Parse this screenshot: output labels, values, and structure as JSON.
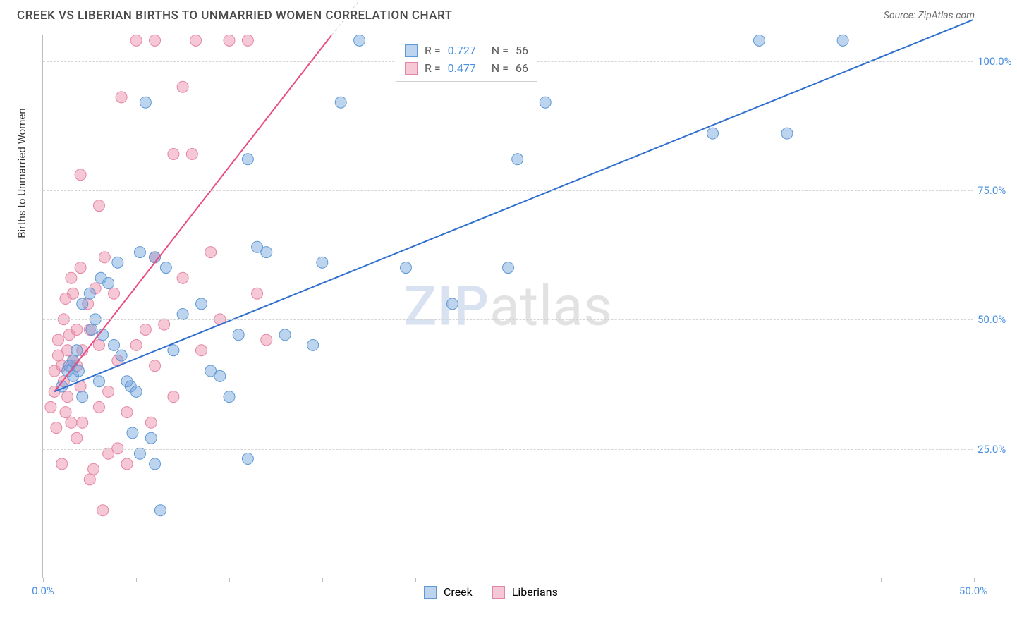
{
  "title": "CREEK VS LIBERIAN BIRTHS TO UNMARRIED WOMEN CORRELATION CHART",
  "source": "Source: ZipAtlas.com",
  "y_axis_label": "Births to Unmarried Women",
  "watermark_a": "ZIP",
  "watermark_b": "atlas",
  "chart": {
    "type": "scatter",
    "xlim": [
      0,
      50
    ],
    "ylim": [
      0,
      105
    ],
    "x_ticks": [
      0,
      5,
      10,
      15,
      20,
      25,
      30,
      35,
      40,
      45,
      50
    ],
    "y_gridlines": [
      25,
      50,
      75,
      100
    ],
    "y_tick_labels": [
      "25.0%",
      "50.0%",
      "75.0%",
      "100.0%"
    ],
    "x_left_label": "0.0%",
    "x_right_label": "50.0%",
    "x_label_color_left": "#4a90e2",
    "x_label_color_right": "#4a90e2",
    "grid_color": "#d4d4d4",
    "axis_color": "#bdbdbd",
    "background": "#ffffff"
  },
  "series": {
    "creek": {
      "label": "Creek",
      "color_fill": "rgba(108,160,220,0.45)",
      "color_stroke": "#5f98d4",
      "line_color": "#2f6fd0",
      "line_width": 2,
      "trend": {
        "x1": 0.6,
        "y1": 36,
        "x2": 50,
        "y2": 108
      },
      "points": [
        [
          1.0,
          37
        ],
        [
          1.3,
          40
        ],
        [
          1.4,
          41
        ],
        [
          1.6,
          42
        ],
        [
          1.6,
          39
        ],
        [
          1.9,
          40
        ],
        [
          2.1,
          35
        ],
        [
          2.1,
          53
        ],
        [
          2.6,
          48
        ],
        [
          2.8,
          50
        ],
        [
          3.1,
          58
        ],
        [
          3.5,
          57
        ],
        [
          3.2,
          47
        ],
        [
          3.8,
          45
        ],
        [
          4.2,
          43
        ],
        [
          4.5,
          38
        ],
        [
          4.7,
          37
        ],
        [
          5.0,
          36
        ],
        [
          5.2,
          24
        ],
        [
          5.8,
          27
        ],
        [
          6.0,
          22
        ],
        [
          6.3,
          13
        ],
        [
          7.0,
          44
        ],
        [
          4.0,
          61
        ],
        [
          5.2,
          63
        ],
        [
          6.0,
          62
        ],
        [
          6.6,
          60
        ],
        [
          7.5,
          51
        ],
        [
          8.5,
          53
        ],
        [
          9.0,
          40
        ],
        [
          9.5,
          39
        ],
        [
          10.0,
          35
        ],
        [
          10.5,
          47
        ],
        [
          11.0,
          23
        ],
        [
          11.0,
          81
        ],
        [
          11.5,
          64
        ],
        [
          12.0,
          63
        ],
        [
          13.0,
          47
        ],
        [
          14.5,
          45
        ],
        [
          15.0,
          61
        ],
        [
          17.0,
          104
        ],
        [
          19.5,
          60
        ],
        [
          22.0,
          53
        ],
        [
          25.5,
          81
        ],
        [
          27.0,
          92
        ],
        [
          25.0,
          60
        ],
        [
          16.0,
          92
        ],
        [
          5.5,
          92
        ],
        [
          36.0,
          86
        ],
        [
          38.5,
          104
        ],
        [
          40.0,
          86
        ],
        [
          43.0,
          104
        ],
        [
          2.5,
          55
        ],
        [
          1.8,
          44
        ],
        [
          3.0,
          38
        ],
        [
          4.8,
          28
        ]
      ]
    },
    "liberians": {
      "label": "Liberians",
      "color_fill": "rgba(235,130,160,0.45)",
      "color_stroke": "#e386a6",
      "line_color": "#e94b82",
      "line_width": 2,
      "trend": {
        "x1": 0.6,
        "y1": 36,
        "x2": 15.5,
        "y2": 105
      },
      "dash_ext": {
        "x1": 15.5,
        "y1": 105,
        "x2": 17.5,
        "y2": 114
      },
      "points": [
        [
          0.4,
          33
        ],
        [
          0.6,
          36
        ],
        [
          0.6,
          40
        ],
        [
          0.7,
          29
        ],
        [
          0.8,
          43
        ],
        [
          0.8,
          46
        ],
        [
          1.0,
          41
        ],
        [
          1.1,
          50
        ],
        [
          1.1,
          38
        ],
        [
          1.2,
          54
        ],
        [
          1.2,
          32
        ],
        [
          1.3,
          35
        ],
        [
          1.3,
          44
        ],
        [
          1.4,
          47
        ],
        [
          1.5,
          58
        ],
        [
          1.6,
          42
        ],
        [
          1.6,
          55
        ],
        [
          1.8,
          27
        ],
        [
          1.8,
          48
        ],
        [
          1.8,
          41
        ],
        [
          2.0,
          60
        ],
        [
          2.0,
          37
        ],
        [
          2.1,
          30
        ],
        [
          2.1,
          44
        ],
        [
          2.0,
          78
        ],
        [
          2.4,
          53
        ],
        [
          2.5,
          48
        ],
        [
          2.5,
          19
        ],
        [
          2.7,
          21
        ],
        [
          3.0,
          72
        ],
        [
          3.0,
          45
        ],
        [
          3.2,
          13
        ],
        [
          3.5,
          24
        ],
        [
          3.5,
          36
        ],
        [
          3.8,
          55
        ],
        [
          4.0,
          42
        ],
        [
          4.2,
          93
        ],
        [
          4.5,
          32
        ],
        [
          4.5,
          22
        ],
        [
          5.0,
          45
        ],
        [
          5.0,
          104
        ],
        [
          5.5,
          48
        ],
        [
          5.8,
          30
        ],
        [
          6.0,
          62
        ],
        [
          6.0,
          41
        ],
        [
          6.0,
          104
        ],
        [
          6.5,
          49
        ],
        [
          7.0,
          82
        ],
        [
          7.0,
          35
        ],
        [
          7.5,
          58
        ],
        [
          7.5,
          95
        ],
        [
          8.0,
          82
        ],
        [
          8.2,
          104
        ],
        [
          8.5,
          44
        ],
        [
          9.0,
          63
        ],
        [
          9.5,
          50
        ],
        [
          10.0,
          104
        ],
        [
          11.0,
          104
        ],
        [
          11.5,
          55
        ],
        [
          12.0,
          46
        ],
        [
          1.0,
          22
        ],
        [
          1.5,
          30
        ],
        [
          2.8,
          56
        ],
        [
          3.3,
          62
        ],
        [
          4.0,
          25
        ],
        [
          3.0,
          33
        ]
      ]
    }
  },
  "legend_top": {
    "rows": [
      {
        "swatch_fill": "rgba(108,160,220,0.45)",
        "swatch_stroke": "#5f98d4",
        "r": "0.727",
        "n": "56"
      },
      {
        "swatch_fill": "rgba(235,130,160,0.45)",
        "swatch_stroke": "#e386a6",
        "r": "0.477",
        "n": "66"
      }
    ],
    "r_prefix": "R =",
    "n_prefix": "N ="
  },
  "legend_bottom": {
    "items": [
      {
        "swatch_fill": "rgba(108,160,220,0.45)",
        "swatch_stroke": "#5f98d4",
        "label": "Creek"
      },
      {
        "swatch_fill": "rgba(235,130,160,0.45)",
        "swatch_stroke": "#e386a6",
        "label": "Liberians"
      }
    ]
  }
}
